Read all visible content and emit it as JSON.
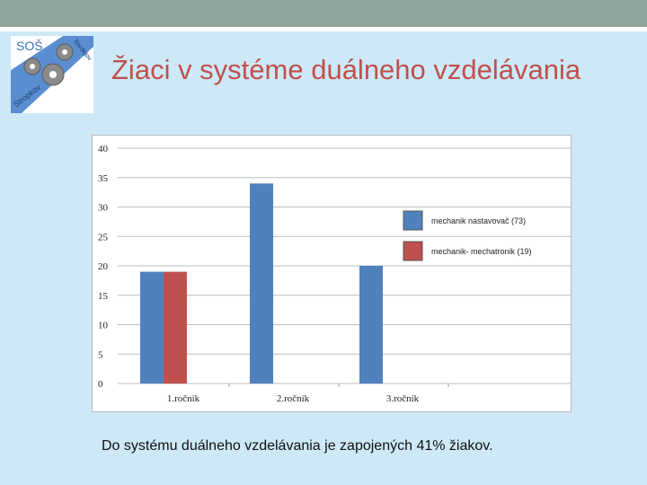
{
  "slide": {
    "title": "Žiaci v systéme duálneho vzdelávania",
    "footnote": "Do systému duálneho vzdelávania je zapojených 41% žiakov."
  },
  "logo": {
    "text_top": "SOŠ",
    "text_bottom": "Stropkov",
    "text_side": "Bardejov",
    "icon": "gears-icon"
  },
  "colors": {
    "title": "#c0504d",
    "series1": "#4f81bd",
    "series2": "#c0504d",
    "background": "#cde9f7",
    "topbar": "#8fa49a"
  },
  "chart_data": {
    "type": "bar",
    "categories": [
      "1.ročník",
      "2.ročník",
      "3.ročník"
    ],
    "series": [
      {
        "name": "mechanik nastavovač (73)",
        "values": [
          19,
          34,
          20
        ]
      },
      {
        "name": "mechanik- mechatronik (19)",
        "values": [
          19,
          0,
          0
        ]
      }
    ],
    "yticks": [
      0,
      5,
      10,
      15,
      20,
      25,
      30,
      35,
      40
    ],
    "ylim": [
      0,
      40
    ],
    "grid": true,
    "legend": "top-right"
  }
}
